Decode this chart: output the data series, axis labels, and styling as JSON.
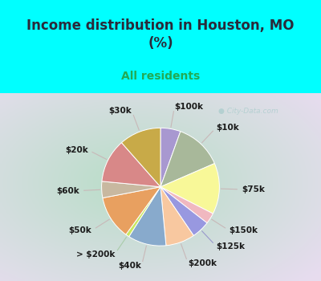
{
  "title": "Income distribution in Houston, MO\n(%)",
  "subtitle": "All residents",
  "title_color": "#2a2a3a",
  "subtitle_color": "#22aa55",
  "background_cyan": "#00ffff",
  "background_chart_edge": "#b8ddc8",
  "background_chart_center": "#f0f8f0",
  "watermark": "City-Data.com",
  "slices": [
    {
      "label": "$100k",
      "value": 5.5,
      "color": "#a898d0"
    },
    {
      "label": "$10k",
      "value": 13.0,
      "color": "#a8b89a"
    },
    {
      "label": "$75k",
      "value": 14.0,
      "color": "#f8f898"
    },
    {
      "label": "$150k",
      "value": 3.0,
      "color": "#f0b8c0"
    },
    {
      "label": "$125k",
      "value": 5.0,
      "color": "#9898e0"
    },
    {
      "label": "$200k",
      "value": 8.0,
      "color": "#f8c8a0"
    },
    {
      "label": "$40k",
      "value": 10.5,
      "color": "#88aacc"
    },
    {
      "label": "> $200k",
      "value": 1.0,
      "color": "#c8e860"
    },
    {
      "label": "$50k",
      "value": 12.0,
      "color": "#e8a060"
    },
    {
      "label": "$60k",
      "value": 4.5,
      "color": "#c8b8a0"
    },
    {
      "label": "$20k",
      "value": 12.0,
      "color": "#d88888"
    },
    {
      "label": "$30k",
      "value": 11.5,
      "color": "#c8aa48"
    }
  ],
  "label_fontsize": 7.5,
  "label_color": "#1a1a1a",
  "line_color": "#ccaaaa",
  "figsize": [
    4.0,
    3.5
  ],
  "dpi": 100,
  "title_fontsize": 12,
  "subtitle_fontsize": 10
}
